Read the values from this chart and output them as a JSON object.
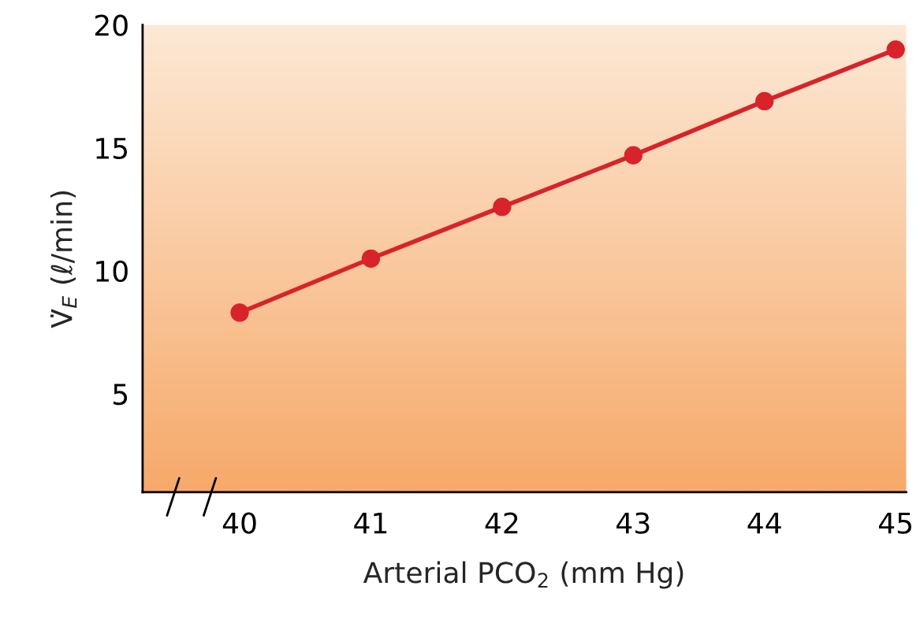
{
  "chart_data": {
    "type": "line",
    "xlabel": "Arterial PCO$_{2}$ (mm Hg)",
    "ylabel": "V̇$_{E}$ (ℓ/min)",
    "x": [
      40,
      41,
      42,
      43,
      44,
      45
    ],
    "series": [
      {
        "color": "#d8232a",
        "values": [
          8.3,
          10.5,
          12.6,
          14.7,
          16.9,
          19.0
        ]
      }
    ],
    "xlim": [
      39.26,
      45.08
    ],
    "xticks": [
      40,
      41,
      42,
      43,
      44,
      45
    ],
    "ylim": [
      1,
      20
    ],
    "yticks": [
      5,
      10,
      15,
      20
    ],
    "marker": "circle",
    "line_style": "solid",
    "grid": false,
    "legend": false
  }
}
